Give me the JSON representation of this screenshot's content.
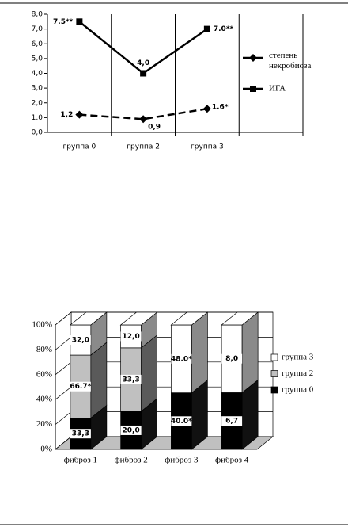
{
  "chart_data": [
    {
      "type": "line",
      "categories": [
        "группа 0",
        "группа 2",
        "группа 3",
        null
      ],
      "series": [
        {
          "name": "степень некробиоза",
          "color": "#000000",
          "dash": true,
          "marker": "diamond",
          "values": [
            1.2,
            0.9,
            1.6,
            null
          ],
          "value_labels": [
            "1,2",
            "0,9",
            "1.6*",
            null
          ]
        },
        {
          "name": "ИГА",
          "color": "#000000",
          "dash": false,
          "marker": "square",
          "values": [
            7.5,
            4.0,
            7.0,
            null
          ],
          "value_labels": [
            "7.5**",
            "4,0",
            "7.0**",
            null
          ]
        }
      ],
      "ylim": [
        0,
        8
      ],
      "yticks": [
        {
          "value": 0,
          "label": "0,0"
        },
        {
          "value": 1,
          "label": "1,0"
        },
        {
          "value": 2,
          "label": "2,0"
        },
        {
          "value": 3,
          "label": "3,0"
        },
        {
          "value": 4,
          "label": "4,0"
        },
        {
          "value": 5,
          "label": "5,0"
        },
        {
          "value": 6,
          "label": "6,0"
        },
        {
          "value": 7,
          "label": "7,0"
        },
        {
          "value": 8,
          "label": "8,0"
        }
      ],
      "grid": "vertical",
      "legend": "right"
    },
    {
      "type": "bar",
      "stacked": "percent",
      "three_d": true,
      "categories": [
        "фиброз 1",
        "фиброз 2",
        "фиброз 3",
        "фиброз 4"
      ],
      "series": [
        {
          "name": "группа 0",
          "color": "#000000",
          "values": [
            33.3,
            20.0,
            40.0,
            6.7
          ],
          "value_labels": [
            "33,3",
            "20,0",
            "40.0*",
            "6,7"
          ]
        },
        {
          "name": "группа 2",
          "color": "#c0c0c0",
          "values": [
            66.7,
            33.3,
            0,
            0
          ],
          "value_labels": [
            "66.7*",
            "33,3",
            null,
            null
          ]
        },
        {
          "name": "группа 3",
          "color": "#ffffff",
          "values": [
            32.0,
            12.0,
            48.0,
            8.0
          ],
          "value_labels": [
            "32,0",
            "12,0",
            "48.0*",
            "8,0"
          ]
        }
      ],
      "ylim": [
        0,
        100
      ],
      "yticks": [
        {
          "value": 0,
          "label": "0%"
        },
        {
          "value": 20,
          "label": "20%"
        },
        {
          "value": 40,
          "label": "40%"
        },
        {
          "value": 60,
          "label": "60%"
        },
        {
          "value": 80,
          "label": "80%"
        },
        {
          "value": 100,
          "label": "100%"
        }
      ],
      "grid": true,
      "legend": "right"
    }
  ]
}
